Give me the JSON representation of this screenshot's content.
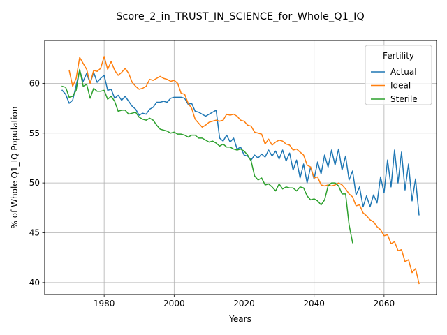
{
  "chart_data": {
    "type": "line",
    "title": "Score_2_in_TRUST_IN_SCIENCE_for_Whole_Q1_IQ",
    "xlabel": "Years",
    "ylabel": "% of Whole Q1_IQ Population",
    "xlim": [
      1963,
      2075
    ],
    "ylim": [
      38.8,
      64.3
    ],
    "xticks": [
      1980,
      2000,
      2020,
      2040,
      2060
    ],
    "yticks": [
      40,
      45,
      50,
      55,
      60
    ],
    "grid": true,
    "legend": {
      "title": "Fertility",
      "placement": "top-right"
    },
    "series": [
      {
        "name": "Actual",
        "color": "#1f77b4",
        "points": [
          [
            1968,
            59.3
          ],
          [
            1969,
            58.9
          ],
          [
            1970,
            58.0
          ],
          [
            1971,
            58.3
          ],
          [
            1972,
            59.8
          ],
          [
            1973,
            61.3
          ],
          [
            1974,
            60.2
          ],
          [
            1975,
            61.0
          ],
          [
            1976,
            60.0
          ],
          [
            1977,
            61.1
          ],
          [
            1978,
            60.1
          ],
          [
            1979,
            60.5
          ],
          [
            1980,
            60.8
          ],
          [
            1981,
            59.3
          ],
          [
            1982,
            59.4
          ],
          [
            1983,
            58.5
          ],
          [
            1984,
            58.8
          ],
          [
            1985,
            58.3
          ],
          [
            1986,
            58.7
          ],
          [
            1987,
            58.2
          ],
          [
            1988,
            57.7
          ],
          [
            1989,
            57.4
          ],
          [
            1990,
            56.8
          ],
          [
            1991,
            57.0
          ],
          [
            1992,
            56.9
          ],
          [
            1993,
            57.4
          ],
          [
            1994,
            57.6
          ],
          [
            1995,
            58.1
          ],
          [
            1996,
            58.1
          ],
          [
            1997,
            58.2
          ],
          [
            1998,
            58.1
          ],
          [
            1999,
            58.5
          ],
          [
            2000,
            58.6
          ],
          [
            2001,
            58.6
          ],
          [
            2002,
            58.6
          ],
          [
            2003,
            58.5
          ],
          [
            2004,
            57.9
          ],
          [
            2005,
            58.0
          ],
          [
            2006,
            57.2
          ],
          [
            2007,
            57.1
          ],
          [
            2008,
            56.9
          ],
          [
            2009,
            56.7
          ],
          [
            2010,
            56.9
          ],
          [
            2011,
            57.1
          ],
          [
            2012,
            57.3
          ],
          [
            2013,
            54.5
          ],
          [
            2014,
            54.2
          ],
          [
            2015,
            54.8
          ],
          [
            2016,
            54.1
          ],
          [
            2017,
            54.5
          ],
          [
            2018,
            53.4
          ],
          [
            2019,
            53.6
          ],
          [
            2020,
            52.8
          ],
          [
            2021,
            52.7
          ],
          [
            2022,
            52.3
          ],
          [
            2023,
            52.8
          ],
          [
            2024,
            52.5
          ],
          [
            2025,
            52.9
          ],
          [
            2026,
            52.6
          ],
          [
            2027,
            53.3
          ],
          [
            2028,
            52.7
          ],
          [
            2029,
            53.2
          ],
          [
            2030,
            52.4
          ],
          [
            2031,
            53.3
          ],
          [
            2032,
            52.2
          ],
          [
            2033,
            53.0
          ],
          [
            2034,
            51.3
          ],
          [
            2035,
            52.3
          ],
          [
            2036,
            50.5
          ],
          [
            2037,
            51.9
          ],
          [
            2038,
            50.0
          ],
          [
            2039,
            51.6
          ],
          [
            2040,
            50.4
          ],
          [
            2041,
            52.1
          ],
          [
            2042,
            50.9
          ],
          [
            2043,
            52.8
          ],
          [
            2044,
            51.6
          ],
          [
            2045,
            53.3
          ],
          [
            2046,
            51.8
          ],
          [
            2047,
            53.4
          ],
          [
            2048,
            51.3
          ],
          [
            2049,
            52.7
          ],
          [
            2050,
            50.3
          ],
          [
            2051,
            51.2
          ],
          [
            2052,
            48.8
          ],
          [
            2053,
            49.6
          ],
          [
            2054,
            47.6
          ],
          [
            2055,
            48.7
          ],
          [
            2056,
            47.6
          ],
          [
            2057,
            48.8
          ],
          [
            2058,
            48.0
          ],
          [
            2059,
            50.6
          ],
          [
            2060,
            49.0
          ],
          [
            2061,
            52.3
          ],
          [
            2062,
            49.6
          ],
          [
            2063,
            53.3
          ],
          [
            2064,
            50.0
          ],
          [
            2065,
            53.1
          ],
          [
            2066,
            49.3
          ],
          [
            2067,
            51.9
          ],
          [
            2068,
            48.2
          ],
          [
            2069,
            50.4
          ],
          [
            2070,
            46.8
          ]
        ]
      },
      {
        "name": "Ideal",
        "color": "#ff7f0e",
        "points": [
          [
            1970,
            61.3
          ],
          [
            1971,
            59.7
          ],
          [
            1972,
            60.5
          ],
          [
            1973,
            62.6
          ],
          [
            1974,
            62.0
          ],
          [
            1975,
            61.4
          ],
          [
            1976,
            60.0
          ],
          [
            1977,
            61.3
          ],
          [
            1978,
            61.2
          ],
          [
            1979,
            61.5
          ],
          [
            1980,
            62.7
          ],
          [
            1981,
            61.4
          ],
          [
            1982,
            62.2
          ],
          [
            1983,
            61.3
          ],
          [
            1984,
            60.8
          ],
          [
            1985,
            61.1
          ],
          [
            1986,
            61.5
          ],
          [
            1987,
            61.0
          ],
          [
            1988,
            60.1
          ],
          [
            1989,
            59.7
          ],
          [
            1990,
            59.4
          ],
          [
            1991,
            59.5
          ],
          [
            1992,
            59.7
          ],
          [
            1993,
            60.4
          ],
          [
            1994,
            60.3
          ],
          [
            1995,
            60.5
          ],
          [
            1996,
            60.7
          ],
          [
            1997,
            60.5
          ],
          [
            1998,
            60.4
          ],
          [
            1999,
            60.2
          ],
          [
            2000,
            60.3
          ],
          [
            2001,
            60.0
          ],
          [
            2002,
            59.0
          ],
          [
            2003,
            58.9
          ],
          [
            2004,
            58.0
          ],
          [
            2005,
            57.5
          ],
          [
            2006,
            56.4
          ],
          [
            2007,
            56.0
          ],
          [
            2008,
            55.6
          ],
          [
            2009,
            55.8
          ],
          [
            2010,
            56.1
          ],
          [
            2011,
            56.2
          ],
          [
            2012,
            56.3
          ],
          [
            2013,
            56.2
          ],
          [
            2014,
            56.3
          ],
          [
            2015,
            56.9
          ],
          [
            2016,
            56.8
          ],
          [
            2017,
            56.9
          ],
          [
            2018,
            56.7
          ],
          [
            2019,
            56.3
          ],
          [
            2020,
            56.2
          ],
          [
            2021,
            55.8
          ],
          [
            2022,
            55.7
          ],
          [
            2023,
            55.1
          ],
          [
            2024,
            55.0
          ],
          [
            2025,
            54.9
          ],
          [
            2026,
            53.9
          ],
          [
            2027,
            54.4
          ],
          [
            2028,
            53.8
          ],
          [
            2029,
            54.1
          ],
          [
            2030,
            54.3
          ],
          [
            2031,
            54.2
          ],
          [
            2032,
            53.9
          ],
          [
            2033,
            53.8
          ],
          [
            2034,
            53.3
          ],
          [
            2035,
            53.4
          ],
          [
            2036,
            53.1
          ],
          [
            2037,
            52.8
          ],
          [
            2038,
            51.8
          ],
          [
            2039,
            51.6
          ],
          [
            2040,
            50.5
          ],
          [
            2041,
            50.6
          ],
          [
            2042,
            49.8
          ],
          [
            2043,
            49.7
          ],
          [
            2044,
            49.8
          ],
          [
            2045,
            49.7
          ],
          [
            2046,
            49.8
          ],
          [
            2047,
            50.0
          ],
          [
            2048,
            49.8
          ],
          [
            2049,
            49.4
          ],
          [
            2050,
            48.9
          ],
          [
            2051,
            48.6
          ],
          [
            2052,
            47.7
          ],
          [
            2053,
            47.8
          ],
          [
            2054,
            47.0
          ],
          [
            2055,
            46.7
          ],
          [
            2056,
            46.3
          ],
          [
            2057,
            46.1
          ],
          [
            2058,
            45.6
          ],
          [
            2059,
            45.3
          ],
          [
            2060,
            44.7
          ],
          [
            2061,
            44.8
          ],
          [
            2062,
            43.9
          ],
          [
            2063,
            44.1
          ],
          [
            2064,
            43.2
          ],
          [
            2065,
            43.3
          ],
          [
            2066,
            42.1
          ],
          [
            2067,
            42.3
          ],
          [
            2068,
            41.0
          ],
          [
            2069,
            41.4
          ],
          [
            2070,
            39.9
          ]
        ]
      },
      {
        "name": "Sterile",
        "color": "#2ca02c",
        "points": [
          [
            1968,
            59.7
          ],
          [
            1969,
            59.6
          ],
          [
            1970,
            58.6
          ],
          [
            1971,
            58.7
          ],
          [
            1972,
            59.3
          ],
          [
            1973,
            61.4
          ],
          [
            1974,
            59.7
          ],
          [
            1975,
            59.9
          ],
          [
            1976,
            58.5
          ],
          [
            1977,
            59.5
          ],
          [
            1978,
            59.2
          ],
          [
            1979,
            59.2
          ],
          [
            1980,
            59.3
          ],
          [
            1981,
            58.4
          ],
          [
            1982,
            58.7
          ],
          [
            1983,
            58.2
          ],
          [
            1984,
            57.2
          ],
          [
            1985,
            57.3
          ],
          [
            1986,
            57.3
          ],
          [
            1987,
            56.9
          ],
          [
            1988,
            57.0
          ],
          [
            1989,
            57.1
          ],
          [
            1990,
            56.6
          ],
          [
            1991,
            56.4
          ],
          [
            1992,
            56.3
          ],
          [
            1993,
            56.5
          ],
          [
            1994,
            56.3
          ],
          [
            1995,
            55.8
          ],
          [
            1996,
            55.4
          ],
          [
            1997,
            55.3
          ],
          [
            1998,
            55.2
          ],
          [
            1999,
            55.0
          ],
          [
            2000,
            55.1
          ],
          [
            2001,
            54.9
          ],
          [
            2002,
            54.9
          ],
          [
            2003,
            54.8
          ],
          [
            2004,
            54.6
          ],
          [
            2005,
            54.8
          ],
          [
            2006,
            54.8
          ],
          [
            2007,
            54.5
          ],
          [
            2008,
            54.5
          ],
          [
            2009,
            54.3
          ],
          [
            2010,
            54.1
          ],
          [
            2011,
            54.2
          ],
          [
            2012,
            54.0
          ],
          [
            2013,
            53.7
          ],
          [
            2014,
            53.9
          ],
          [
            2015,
            53.6
          ],
          [
            2016,
            53.6
          ],
          [
            2017,
            53.4
          ],
          [
            2018,
            53.3
          ],
          [
            2019,
            53.4
          ],
          [
            2020,
            53.2
          ],
          [
            2021,
            52.8
          ],
          [
            2022,
            52.2
          ],
          [
            2023,
            50.7
          ],
          [
            2024,
            50.3
          ],
          [
            2025,
            50.5
          ],
          [
            2026,
            49.8
          ],
          [
            2027,
            49.9
          ],
          [
            2028,
            49.6
          ],
          [
            2029,
            49.2
          ],
          [
            2030,
            49.9
          ],
          [
            2031,
            49.4
          ],
          [
            2032,
            49.6
          ],
          [
            2033,
            49.5
          ],
          [
            2034,
            49.5
          ],
          [
            2035,
            49.2
          ],
          [
            2036,
            49.6
          ],
          [
            2037,
            49.5
          ],
          [
            2038,
            48.7
          ],
          [
            2039,
            48.3
          ],
          [
            2040,
            48.4
          ],
          [
            2041,
            48.2
          ],
          [
            2042,
            47.8
          ],
          [
            2043,
            48.3
          ],
          [
            2044,
            49.7
          ],
          [
            2045,
            50.0
          ],
          [
            2046,
            50.0
          ],
          [
            2047,
            49.7
          ],
          [
            2048,
            48.9
          ],
          [
            2049,
            48.9
          ],
          [
            2050,
            45.8
          ],
          [
            2051,
            44.0
          ]
        ]
      }
    ]
  }
}
